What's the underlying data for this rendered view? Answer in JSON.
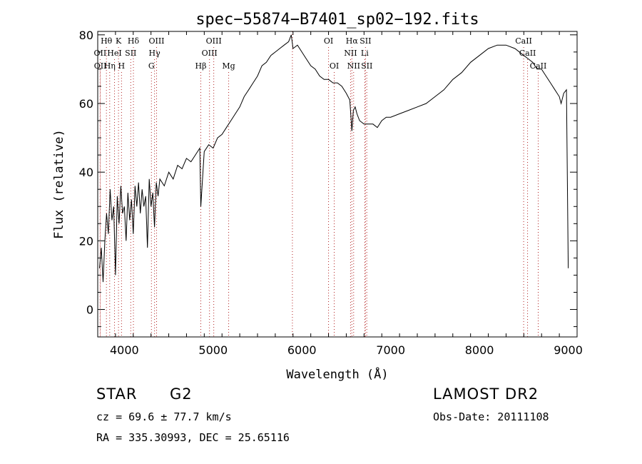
{
  "chart_data": {
    "type": "line",
    "title": "spec−55874−B7401_sp02−192.fits",
    "xlabel": "Wavelength (Å)",
    "ylabel": "Flux (relative)",
    "xlim": [
      3700,
      9100
    ],
    "ylim": [
      -8,
      81
    ],
    "xticks": [
      4000,
      5000,
      6000,
      7000,
      8000,
      9000
    ],
    "yticks": [
      0,
      20,
      40,
      60,
      80
    ],
    "grid": false,
    "legend": "none",
    "series": [
      {
        "color": "#000000",
        "x": [
          3720,
          3740,
          3760,
          3780,
          3800,
          3820,
          3840,
          3860,
          3880,
          3900,
          3920,
          3940,
          3960,
          3980,
          4000,
          4020,
          4040,
          4060,
          4080,
          4100,
          4120,
          4140,
          4160,
          4180,
          4200,
          4220,
          4240,
          4260,
          4280,
          4300,
          4320,
          4340,
          4360,
          4380,
          4400,
          4450,
          4500,
          4550,
          4600,
          4650,
          4700,
          4750,
          4800,
          4850,
          4861,
          4900,
          4950,
          5000,
          5050,
          5100,
          5150,
          5200,
          5250,
          5300,
          5350,
          5400,
          5450,
          5500,
          5550,
          5600,
          5650,
          5700,
          5750,
          5800,
          5850,
          5880,
          5900,
          5950,
          6000,
          6050,
          6100,
          6150,
          6200,
          6250,
          6300,
          6350,
          6400,
          6450,
          6500,
          6540,
          6563,
          6580,
          6600,
          6620,
          6650,
          6700,
          6750,
          6800,
          6850,
          6900,
          6950,
          7000,
          7100,
          7200,
          7300,
          7400,
          7500,
          7600,
          7700,
          7800,
          7900,
          8000,
          8100,
          8200,
          8300,
          8400,
          8500,
          8550,
          8600,
          8650,
          8700,
          8750,
          8800,
          8850,
          8900,
          8920,
          8950,
          8980,
          9000
        ],
        "y": [
          12,
          18,
          8,
          20,
          28,
          22,
          35,
          26,
          30,
          10,
          33,
          25,
          36,
          28,
          30,
          20,
          34,
          26,
          32,
          22,
          36,
          30,
          37,
          28,
          35,
          30,
          33,
          18,
          38,
          30,
          34,
          24,
          37,
          33,
          38,
          36,
          40,
          38,
          42,
          41,
          44,
          43,
          45,
          47,
          30,
          46,
          48,
          47,
          50,
          51,
          53,
          55,
          57,
          59,
          62,
          64,
          66,
          68,
          71,
          72,
          74,
          75,
          76,
          77,
          78,
          80,
          76,
          77,
          75,
          73,
          71,
          70,
          68,
          67,
          67,
          66,
          66,
          65,
          63,
          61,
          52,
          58,
          59,
          57,
          55,
          54,
          54,
          54,
          53,
          55,
          56,
          56,
          57,
          58,
          59,
          60,
          62,
          64,
          67,
          69,
          72,
          74,
          76,
          77,
          77,
          76,
          74,
          73,
          72,
          70,
          70,
          68,
          66,
          64,
          62,
          60,
          63,
          64,
          12
        ]
      }
    ],
    "lines": [
      {
        "label": "Hθ",
        "x": 3798,
        "row": 1
      },
      {
        "label": "OII",
        "x": 3727,
        "row": 2
      },
      {
        "label": "OII",
        "x": 3729,
        "row": 3
      },
      {
        "label": "K",
        "x": 3934,
        "row": 1
      },
      {
        "label": "Hη",
        "x": 3835,
        "row": 3
      },
      {
        "label": "HeI",
        "x": 3889,
        "row": 2
      },
      {
        "label": "H",
        "x": 3968,
        "row": 3
      },
      {
        "label": "SII",
        "x": 4072,
        "row": 2
      },
      {
        "label": "Hδ",
        "x": 4102,
        "row": 1
      },
      {
        "label": "OIII",
        "x": 4363,
        "row": 1
      },
      {
        "label": "Hγ",
        "x": 4340,
        "row": 2
      },
      {
        "label": "G",
        "x": 4305,
        "row": 3
      },
      {
        "label": "Hβ",
        "x": 4861,
        "row": 3
      },
      {
        "label": "OIII",
        "x": 4959,
        "row": 2
      },
      {
        "label": "OIII",
        "x": 5007,
        "row": 1
      },
      {
        "label": "Mg",
        "x": 5175,
        "row": 3
      },
      {
        "label": "",
        "x": 5893,
        "row": 0
      },
      {
        "label": "OI",
        "x": 6300,
        "row": 1
      },
      {
        "label": "OI",
        "x": 6364,
        "row": 3
      },
      {
        "label": "NII",
        "x": 6548,
        "row": 2
      },
      {
        "label": "Hα",
        "x": 6563,
        "row": 1
      },
      {
        "label": "NII",
        "x": 6583,
        "row": 3
      },
      {
        "label": "Li",
        "x": 6708,
        "row": 2
      },
      {
        "label": "SII",
        "x": 6716,
        "row": 1
      },
      {
        "label": "SII",
        "x": 6731,
        "row": 3
      },
      {
        "label": "CaII",
        "x": 8498,
        "row": 1
      },
      {
        "label": "CaII",
        "x": 8542,
        "row": 2
      },
      {
        "label": "CaII",
        "x": 8662,
        "row": 3
      }
    ]
  },
  "info": {
    "class": "STAR",
    "subclass": "G2",
    "cz": "cz = 69.6 ± 77.7 km/s",
    "radec": "RA = 335.30993, DEC =  25.65116",
    "survey": "LAMOST DR2",
    "obsdate": "Obs-Date: 20111108"
  }
}
